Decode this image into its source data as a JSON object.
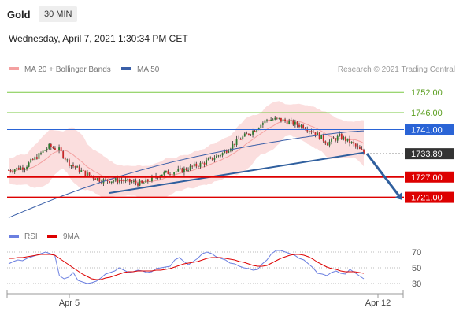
{
  "header": {
    "symbol": "Gold",
    "timeframe": "30 MIN",
    "datetime": "Wednesday, April 7, 2021 1:30:34 PM CET"
  },
  "colors": {
    "bollinger": "#f4a0a0",
    "ma50": "#3a5fa8",
    "green_level": "#7ac943",
    "blue_level": "#2a64d6",
    "red_level": "#dd0000",
    "current_label": "#333333",
    "rsi": "#6b7fe0",
    "rsi_ma": "#dd0000",
    "arrow": "#2f5f9e"
  },
  "chart_data": [
    {
      "type": "candlestick",
      "legend": {
        "ma20": "MA 20 + Bollinger Bands",
        "ma50": "MA 50",
        "placement": "top-left"
      },
      "watermark": "Research © 2021 Trading Central",
      "ylim": [
        1713,
        1756
      ],
      "price_levels": [
        {
          "value": "1752.00",
          "style": "green"
        },
        {
          "value": "1746.00",
          "style": "green"
        },
        {
          "value": "1741.00",
          "style": "blue"
        },
        {
          "value": "1733.89",
          "style": "current"
        },
        {
          "value": "1727.00",
          "style": "red"
        },
        {
          "value": "1721.00",
          "style": "red"
        }
      ],
      "x_ticks": [
        "Apr 5",
        "Apr 12"
      ],
      "ma50_start": 1715,
      "ma50_end": 1740.8,
      "bb_mid_start": 1733,
      "projection_arrow": {
        "from": 1733.9,
        "to": 1721
      }
    },
    {
      "type": "line",
      "legend": {
        "rsi": "RSI",
        "ma": "9MA"
      },
      "ylim": [
        20,
        80
      ],
      "levels": [
        "70",
        "50",
        "30"
      ],
      "series": [
        {
          "name": "RSI",
          "values": [
            55,
            58,
            60,
            59,
            62,
            64,
            66,
            68,
            70,
            68,
            66,
            40,
            36,
            38,
            44,
            34,
            32,
            30,
            31,
            33,
            37,
            42,
            44,
            46,
            50,
            47,
            44,
            45,
            47,
            46,
            44,
            45,
            49,
            50,
            51,
            52,
            60,
            63,
            58,
            54,
            58,
            62,
            68,
            70,
            68,
            64,
            62,
            60,
            56,
            55,
            52,
            50,
            49,
            47,
            48,
            55,
            60,
            68,
            72,
            72,
            70,
            68,
            66,
            62,
            60,
            55,
            50,
            43,
            42,
            40,
            44,
            46,
            43,
            42,
            48,
            44,
            40,
            36
          ]
        },
        {
          "name": "9MA",
          "values": [
            62,
            62,
            63,
            63,
            64,
            65,
            66,
            67,
            67,
            67,
            66,
            62,
            58,
            54,
            50,
            46,
            42,
            39,
            36,
            35,
            35,
            37,
            38,
            40,
            42,
            44,
            45,
            45,
            46,
            46,
            46,
            46,
            47,
            47,
            48,
            49,
            51,
            53,
            55,
            56,
            57,
            58,
            60,
            62,
            63,
            63,
            63,
            62,
            61,
            60,
            58,
            57,
            55,
            53,
            52,
            52,
            53,
            56,
            59,
            62,
            64,
            66,
            67,
            67,
            66,
            64,
            61,
            57,
            54,
            51,
            49,
            48,
            46,
            45,
            45,
            45,
            44,
            43
          ]
        }
      ]
    }
  ]
}
